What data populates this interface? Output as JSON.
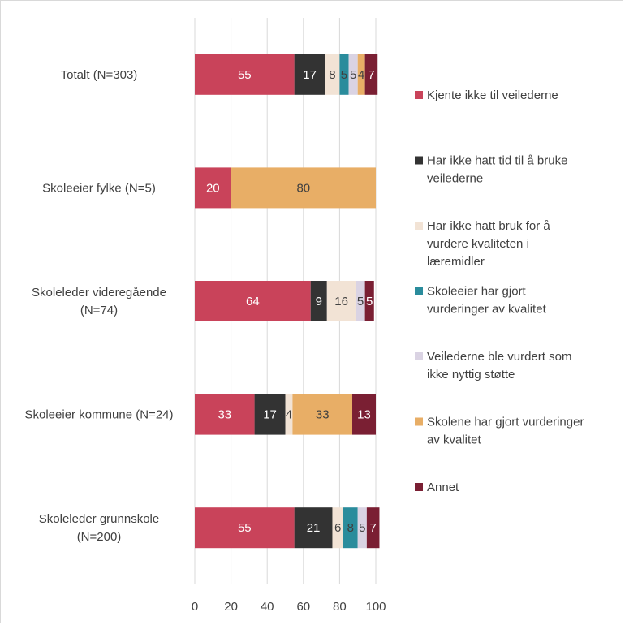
{
  "chart_data": {
    "type": "bar",
    "orientation": "horizontal",
    "stacked": true,
    "categories": [
      "Totalt (N=303)",
      "Skoleeier fylke (N=5)",
      "Skoleleder videregående (N=74)",
      "Skoleeier kommune (N=24)",
      "Skoleleder grunnskole (N=200)"
    ],
    "category_lines": [
      [
        "Totalt (N=303)"
      ],
      [
        "Skoleeier fylke (N=5)"
      ],
      [
        "Skoleleder videregående",
        "(N=74)"
      ],
      [
        "Skoleeier kommune (N=24)"
      ],
      [
        "Skoleleder grunnskole",
        "(N=200)"
      ]
    ],
    "series": [
      {
        "name": "Kjente ikke til veilederne",
        "legend_lines": [
          "Kjente ikke til veilederne"
        ],
        "color": "#C9435A",
        "label_color": "#ffffff",
        "values": [
          55,
          20,
          64,
          33,
          55
        ]
      },
      {
        "name": "Har ikke hatt tid til å bruke veilederne",
        "legend_lines": [
          "Har ikke hatt tid til å bruke",
          "veilederne"
        ],
        "color": "#333333",
        "label_color": "#ffffff",
        "values": [
          17,
          0,
          9,
          17,
          21
        ]
      },
      {
        "name": "Har ikke hatt bruk for å vurdere kvaliteten i læremidler",
        "legend_lines": [
          "Har ikke hatt bruk for å",
          "vurdere kvaliteten i",
          "læremidler"
        ],
        "color": "#F2E3D5",
        "label_color": "#404040",
        "values": [
          8,
          0,
          16,
          4,
          6
        ]
      },
      {
        "name": "Skoleeier har gjort vurderinger av kvalitet",
        "legend_lines": [
          "Skoleeier har gjort",
          "vurderinger av kvalitet"
        ],
        "color": "#2A8C9C",
        "label_color": "#404040",
        "values": [
          5,
          0,
          0,
          0,
          8
        ]
      },
      {
        "name": "Veilederne ble vurdert som ikke nyttig støtte",
        "legend_lines": [
          "Veilederne ble vurdert som",
          "ikke nyttig støtte"
        ],
        "color": "#DAD3E3",
        "label_color": "#404040",
        "values": [
          5,
          0,
          5,
          0,
          5
        ]
      },
      {
        "name": "Skolene har gjort vurderinger av kvalitet",
        "legend_lines": [
          "Skolene har gjort vurderinger",
          "av kvalitet"
        ],
        "color": "#E8AE66",
        "label_color": "#404040",
        "values": [
          4,
          80,
          0,
          33,
          0
        ]
      },
      {
        "name": "Annet",
        "legend_lines": [
          "Annet"
        ],
        "color": "#7A1F33",
        "label_color": "#ffffff",
        "values": [
          7,
          0,
          5,
          13,
          7
        ]
      }
    ],
    "xlim": [
      0,
      100
    ],
    "xticks": [
      0,
      20,
      40,
      60,
      80,
      100
    ],
    "grid": true,
    "legend_position": "right",
    "title": "",
    "xlabel": "",
    "ylabel": ""
  }
}
